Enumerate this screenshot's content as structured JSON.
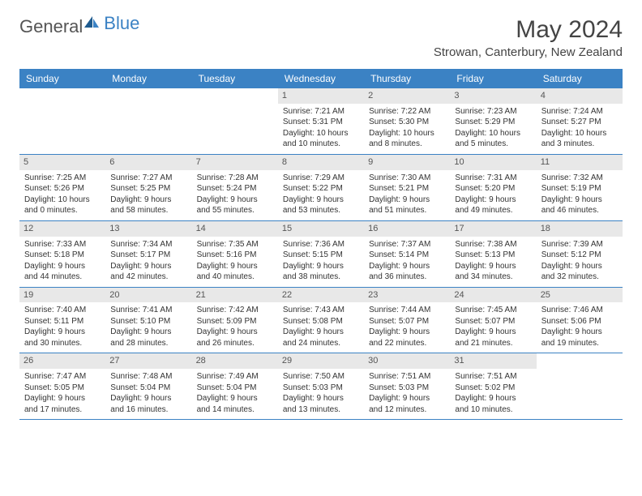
{
  "brand": {
    "part1": "General",
    "part2": "Blue"
  },
  "title": "May 2024",
  "location": "Strowan, Canterbury, New Zealand",
  "colors": {
    "header_bg": "#3b82c4",
    "header_fg": "#ffffff",
    "daynum_bg": "#e8e8e8",
    "text": "#333333",
    "title": "#444444",
    "row_border": "#3b82c4"
  },
  "weekdays": [
    "Sunday",
    "Monday",
    "Tuesday",
    "Wednesday",
    "Thursday",
    "Friday",
    "Saturday"
  ],
  "weeks": [
    [
      {},
      {},
      {},
      {
        "day": "1",
        "sunrise": "7:21 AM",
        "sunset": "5:31 PM",
        "daylight": "10 hours and 10 minutes."
      },
      {
        "day": "2",
        "sunrise": "7:22 AM",
        "sunset": "5:30 PM",
        "daylight": "10 hours and 8 minutes."
      },
      {
        "day": "3",
        "sunrise": "7:23 AM",
        "sunset": "5:29 PM",
        "daylight": "10 hours and 5 minutes."
      },
      {
        "day": "4",
        "sunrise": "7:24 AM",
        "sunset": "5:27 PM",
        "daylight": "10 hours and 3 minutes."
      }
    ],
    [
      {
        "day": "5",
        "sunrise": "7:25 AM",
        "sunset": "5:26 PM",
        "daylight": "10 hours and 0 minutes."
      },
      {
        "day": "6",
        "sunrise": "7:27 AM",
        "sunset": "5:25 PM",
        "daylight": "9 hours and 58 minutes."
      },
      {
        "day": "7",
        "sunrise": "7:28 AM",
        "sunset": "5:24 PM",
        "daylight": "9 hours and 55 minutes."
      },
      {
        "day": "8",
        "sunrise": "7:29 AM",
        "sunset": "5:22 PM",
        "daylight": "9 hours and 53 minutes."
      },
      {
        "day": "9",
        "sunrise": "7:30 AM",
        "sunset": "5:21 PM",
        "daylight": "9 hours and 51 minutes."
      },
      {
        "day": "10",
        "sunrise": "7:31 AM",
        "sunset": "5:20 PM",
        "daylight": "9 hours and 49 minutes."
      },
      {
        "day": "11",
        "sunrise": "7:32 AM",
        "sunset": "5:19 PM",
        "daylight": "9 hours and 46 minutes."
      }
    ],
    [
      {
        "day": "12",
        "sunrise": "7:33 AM",
        "sunset": "5:18 PM",
        "daylight": "9 hours and 44 minutes."
      },
      {
        "day": "13",
        "sunrise": "7:34 AM",
        "sunset": "5:17 PM",
        "daylight": "9 hours and 42 minutes."
      },
      {
        "day": "14",
        "sunrise": "7:35 AM",
        "sunset": "5:16 PM",
        "daylight": "9 hours and 40 minutes."
      },
      {
        "day": "15",
        "sunrise": "7:36 AM",
        "sunset": "5:15 PM",
        "daylight": "9 hours and 38 minutes."
      },
      {
        "day": "16",
        "sunrise": "7:37 AM",
        "sunset": "5:14 PM",
        "daylight": "9 hours and 36 minutes."
      },
      {
        "day": "17",
        "sunrise": "7:38 AM",
        "sunset": "5:13 PM",
        "daylight": "9 hours and 34 minutes."
      },
      {
        "day": "18",
        "sunrise": "7:39 AM",
        "sunset": "5:12 PM",
        "daylight": "9 hours and 32 minutes."
      }
    ],
    [
      {
        "day": "19",
        "sunrise": "7:40 AM",
        "sunset": "5:11 PM",
        "daylight": "9 hours and 30 minutes."
      },
      {
        "day": "20",
        "sunrise": "7:41 AM",
        "sunset": "5:10 PM",
        "daylight": "9 hours and 28 minutes."
      },
      {
        "day": "21",
        "sunrise": "7:42 AM",
        "sunset": "5:09 PM",
        "daylight": "9 hours and 26 minutes."
      },
      {
        "day": "22",
        "sunrise": "7:43 AM",
        "sunset": "5:08 PM",
        "daylight": "9 hours and 24 minutes."
      },
      {
        "day": "23",
        "sunrise": "7:44 AM",
        "sunset": "5:07 PM",
        "daylight": "9 hours and 22 minutes."
      },
      {
        "day": "24",
        "sunrise": "7:45 AM",
        "sunset": "5:07 PM",
        "daylight": "9 hours and 21 minutes."
      },
      {
        "day": "25",
        "sunrise": "7:46 AM",
        "sunset": "5:06 PM",
        "daylight": "9 hours and 19 minutes."
      }
    ],
    [
      {
        "day": "26",
        "sunrise": "7:47 AM",
        "sunset": "5:05 PM",
        "daylight": "9 hours and 17 minutes."
      },
      {
        "day": "27",
        "sunrise": "7:48 AM",
        "sunset": "5:04 PM",
        "daylight": "9 hours and 16 minutes."
      },
      {
        "day": "28",
        "sunrise": "7:49 AM",
        "sunset": "5:04 PM",
        "daylight": "9 hours and 14 minutes."
      },
      {
        "day": "29",
        "sunrise": "7:50 AM",
        "sunset": "5:03 PM",
        "daylight": "9 hours and 13 minutes."
      },
      {
        "day": "30",
        "sunrise": "7:51 AM",
        "sunset": "5:03 PM",
        "daylight": "9 hours and 12 minutes."
      },
      {
        "day": "31",
        "sunrise": "7:51 AM",
        "sunset": "5:02 PM",
        "daylight": "9 hours and 10 minutes."
      },
      {}
    ]
  ],
  "labels": {
    "sunrise": "Sunrise:",
    "sunset": "Sunset:",
    "daylight": "Daylight:"
  }
}
